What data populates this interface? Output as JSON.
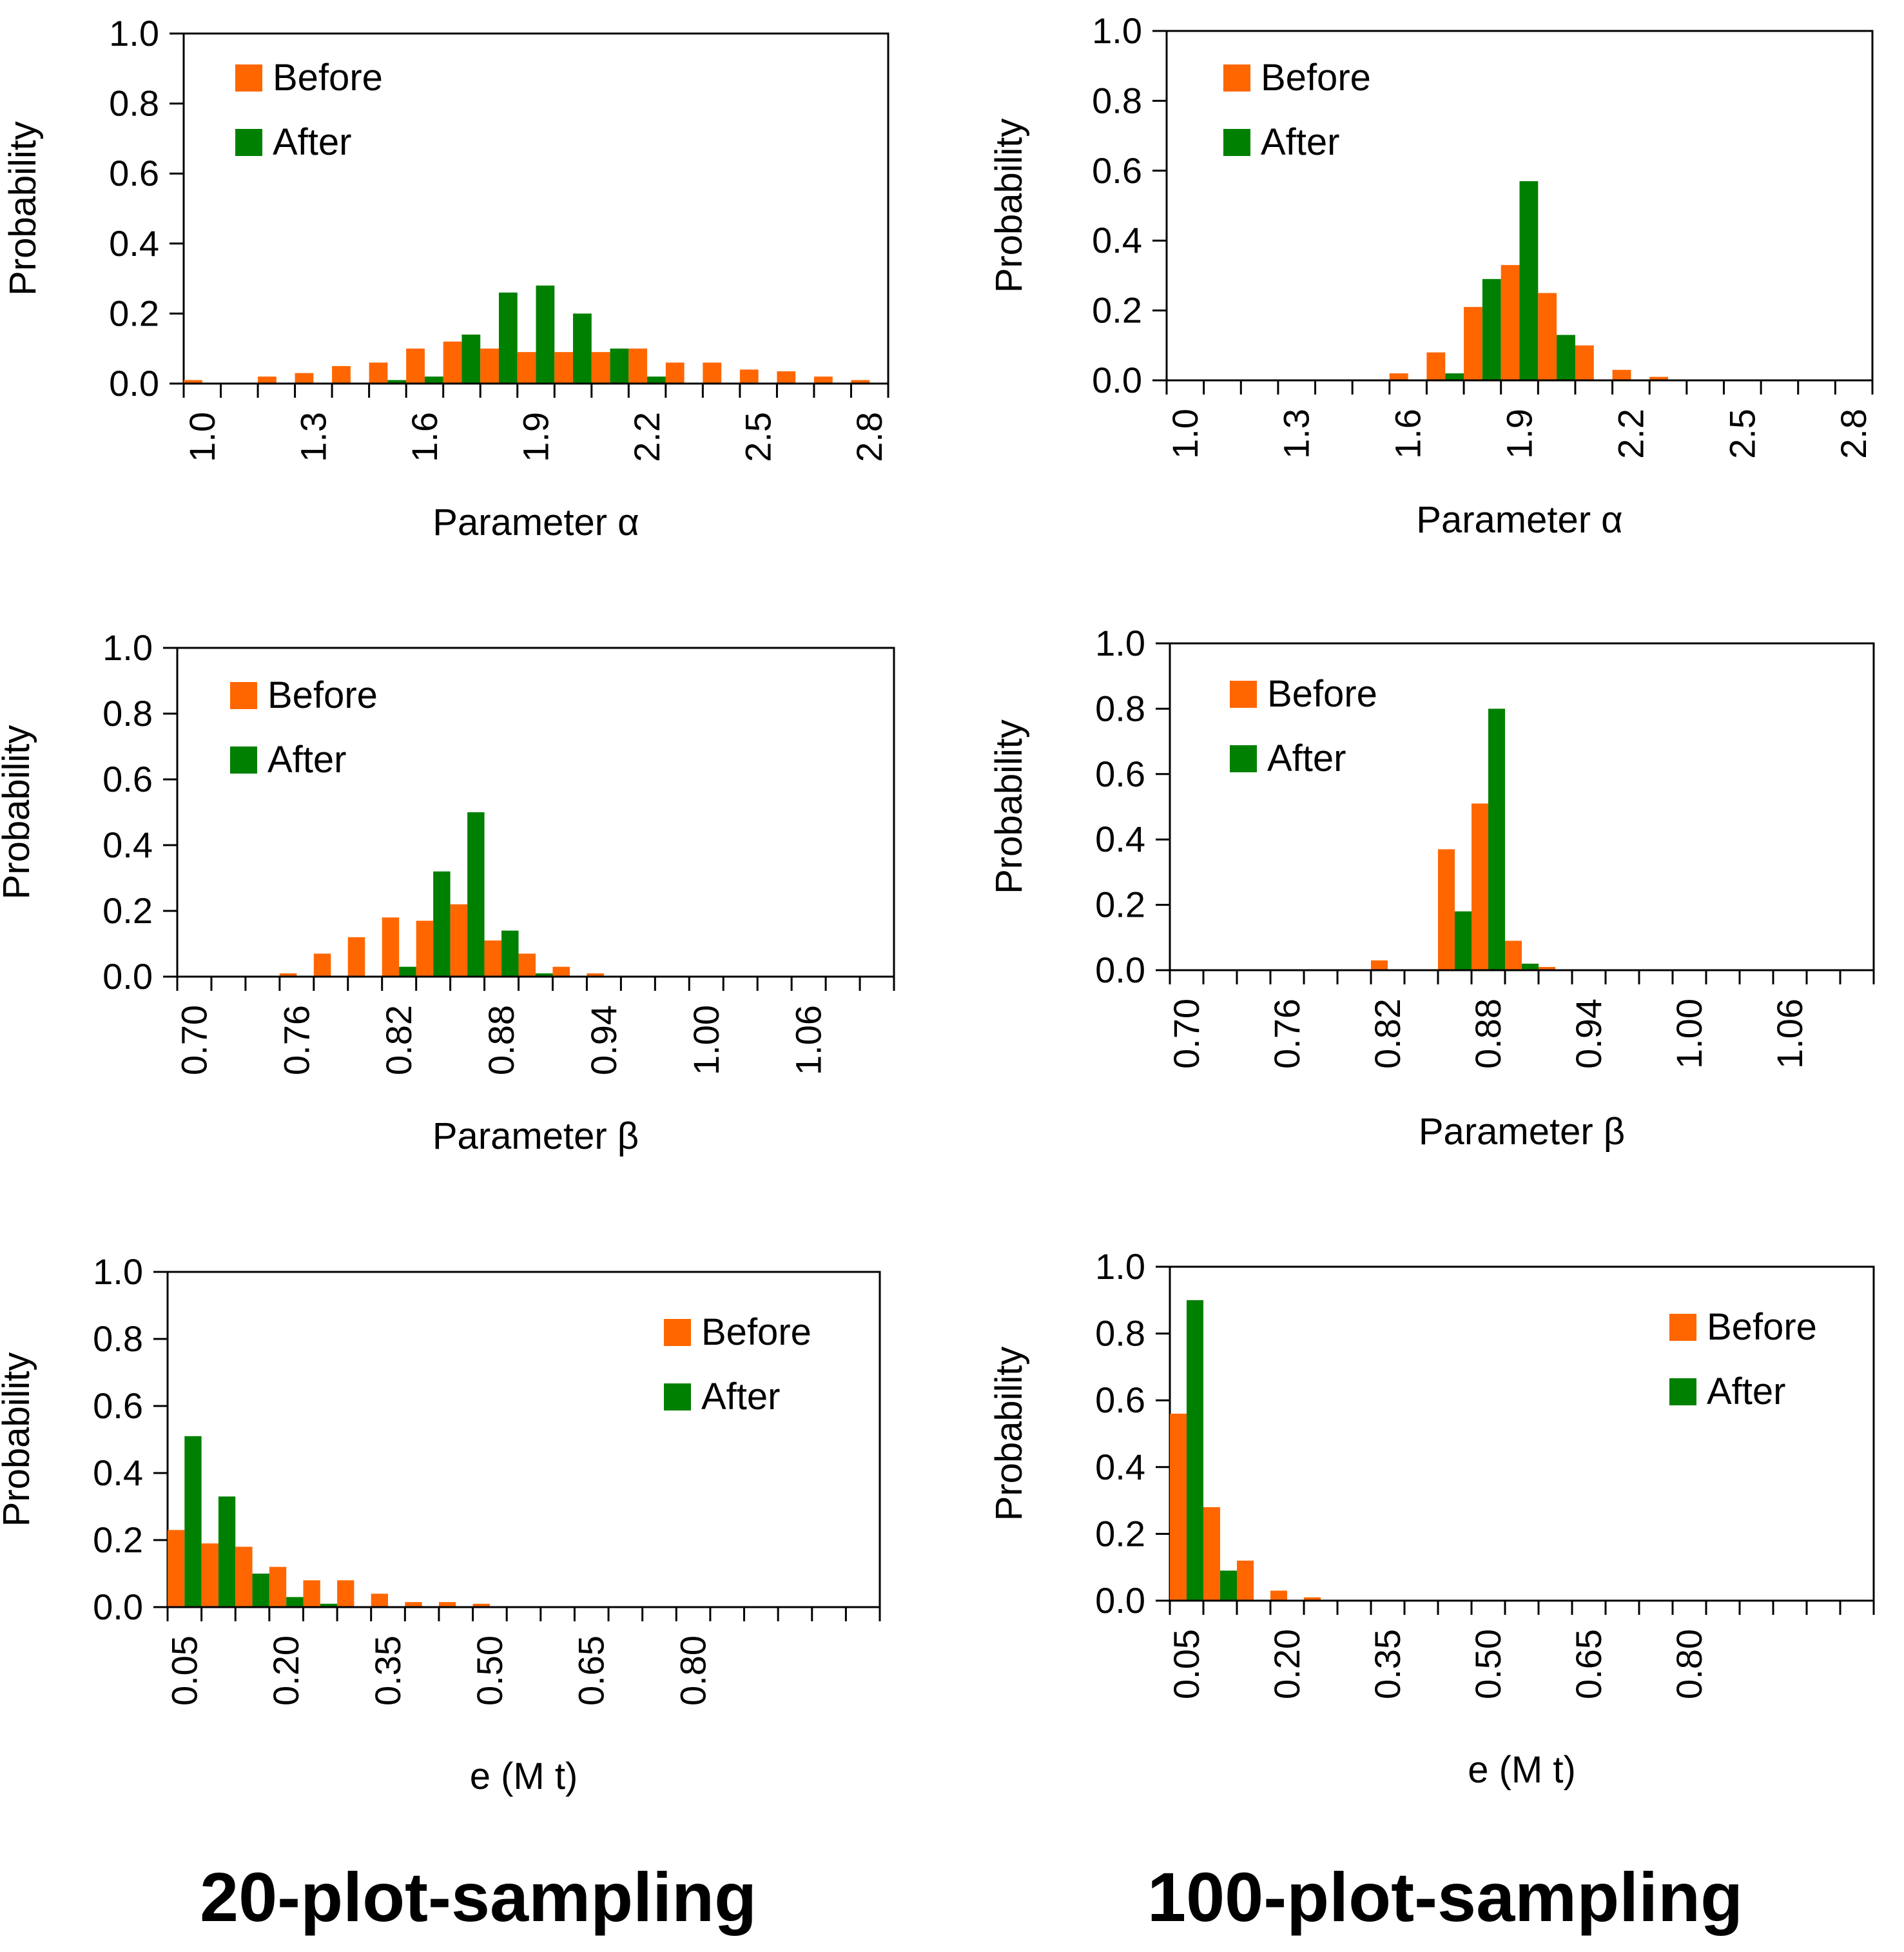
{
  "colors": {
    "before": "#ff6600",
    "after": "#008000",
    "axis": "#000000"
  },
  "footer": {
    "left": "20-plot-sampling",
    "right": "100-plot-sampling"
  },
  "chart_data": [
    {
      "type": "bar",
      "title": "",
      "xlabel": "Parameter α",
      "ylabel": "Probability",
      "ylim": [
        0,
        1.0
      ],
      "yticks": [
        "0.0",
        "0.2",
        "0.4",
        "0.6",
        "0.8",
        "1.0"
      ],
      "bins": 19,
      "tick_labels": [
        "1.0",
        "1.3",
        "1.6",
        "1.9",
        "2.2",
        "2.5",
        "2.8"
      ],
      "legend": {
        "labels": [
          "Before",
          "After"
        ],
        "position": "top-left"
      },
      "series": [
        {
          "name": "Before",
          "values": [
            0.01,
            0,
            0.02,
            0.03,
            0.05,
            0.06,
            0.1,
            0.12,
            0.1,
            0.09,
            0.09,
            0.09,
            0.1,
            0.06,
            0.06,
            0.04,
            0.035,
            0.02,
            0.01
          ]
        },
        {
          "name": "After",
          "values": [
            0,
            0,
            0,
            0,
            0,
            0.01,
            0.02,
            0.14,
            0.26,
            0.28,
            0.2,
            0.1,
            0.02,
            0,
            0,
            0,
            0,
            0,
            0
          ]
        }
      ]
    },
    {
      "type": "bar",
      "title": "",
      "xlabel": "Parameter α",
      "ylabel": "Probability",
      "ylim": [
        0,
        1.0
      ],
      "yticks": [
        "0.0",
        "0.2",
        "0.4",
        "0.6",
        "0.8",
        "1.0"
      ],
      "bins": 19,
      "tick_labels": [
        "1.0",
        "1.3",
        "1.6",
        "1.9",
        "2.2",
        "2.5",
        "2.8"
      ],
      "legend": {
        "labels": [
          "Before",
          "After"
        ],
        "position": "top-left"
      },
      "series": [
        {
          "name": "Before",
          "values": [
            0,
            0,
            0,
            0,
            0,
            0,
            0.02,
            0.08,
            0.21,
            0.33,
            0.25,
            0.1,
            0.03,
            0.01,
            0,
            0,
            0,
            0,
            0
          ]
        },
        {
          "name": "After",
          "values": [
            0,
            0,
            0,
            0,
            0,
            0,
            0,
            0.02,
            0.29,
            0.57,
            0.13,
            0,
            0,
            0,
            0,
            0,
            0,
            0,
            0
          ]
        }
      ]
    },
    {
      "type": "bar",
      "title": "",
      "xlabel": "Parameter β",
      "ylabel": "Probability",
      "ylim": [
        0,
        1.0
      ],
      "yticks": [
        "0.0",
        "0.2",
        "0.4",
        "0.6",
        "0.8",
        "1.0"
      ],
      "bins": 21,
      "tick_labels": [
        "0.70",
        "0.76",
        "0.82",
        "0.88",
        "0.94",
        "1.00",
        "1.06"
      ],
      "legend": {
        "labels": [
          "Before",
          "After"
        ],
        "position": "top-left"
      },
      "series": [
        {
          "name": "Before",
          "values": [
            0,
            0,
            0,
            0.01,
            0.07,
            0.12,
            0.18,
            0.17,
            0.22,
            0.11,
            0.07,
            0.03,
            0.01,
            0,
            0,
            0,
            0,
            0,
            0,
            0,
            0
          ]
        },
        {
          "name": "After",
          "values": [
            0,
            0,
            0,
            0,
            0,
            0,
            0.03,
            0.32,
            0.5,
            0.14,
            0.01,
            0,
            0,
            0,
            0,
            0,
            0,
            0,
            0,
            0,
            0
          ]
        }
      ]
    },
    {
      "type": "bar",
      "title": "",
      "xlabel": "Parameter β",
      "ylabel": "Probability",
      "ylim": [
        0,
        1.0
      ],
      "yticks": [
        "0.0",
        "0.2",
        "0.4",
        "0.6",
        "0.8",
        "1.0"
      ],
      "bins": 21,
      "tick_labels": [
        "0.70",
        "0.76",
        "0.82",
        "0.88",
        "0.94",
        "1.00",
        "1.06"
      ],
      "legend": {
        "labels": [
          "Before",
          "After"
        ],
        "position": "top-left"
      },
      "series": [
        {
          "name": "Before",
          "values": [
            0,
            0,
            0,
            0,
            0,
            0,
            0.03,
            0,
            0.37,
            0.51,
            0.09,
            0.01,
            0,
            0,
            0,
            0,
            0,
            0,
            0,
            0,
            0
          ]
        },
        {
          "name": "After",
          "values": [
            0,
            0,
            0,
            0,
            0,
            0,
            0,
            0,
            0.18,
            0.8,
            0.02,
            0,
            0,
            0,
            0,
            0,
            0,
            0,
            0,
            0,
            0
          ]
        }
      ]
    },
    {
      "type": "bar",
      "title": "",
      "xlabel": "e (M t)",
      "ylabel": "Probability",
      "ylim": [
        0,
        1.0
      ],
      "yticks": [
        "0.0",
        "0.2",
        "0.4",
        "0.6",
        "0.8",
        "1.0"
      ],
      "bins": 21,
      "tick_labels": [
        "0.05",
        "0.20",
        "0.35",
        "0.50",
        "0.65",
        "0.80"
      ],
      "legend": {
        "labels": [
          "Before",
          "After"
        ],
        "position": "top-right"
      },
      "series": [
        {
          "name": "Before",
          "values": [
            0.23,
            0.19,
            0.18,
            0.12,
            0.08,
            0.08,
            0.04,
            0.015,
            0.015,
            0.01,
            0,
            0,
            0,
            0,
            0,
            0,
            0,
            0,
            0,
            0,
            0
          ]
        },
        {
          "name": "After",
          "values": [
            0.51,
            0.33,
            0.1,
            0.03,
            0.01,
            0,
            0,
            0,
            0,
            0,
            0,
            0,
            0,
            0,
            0,
            0,
            0,
            0,
            0,
            0,
            0
          ]
        }
      ]
    },
    {
      "type": "bar",
      "title": "",
      "xlabel": "e (M t)",
      "ylabel": "Probability",
      "ylim": [
        0,
        1.0
      ],
      "yticks": [
        "0.0",
        "0.2",
        "0.4",
        "0.6",
        "0.8",
        "1.0"
      ],
      "bins": 21,
      "tick_labels": [
        "0.05",
        "0.20",
        "0.35",
        "0.50",
        "0.65",
        "0.80"
      ],
      "legend": {
        "labels": [
          "Before",
          "After"
        ],
        "position": "top-right"
      },
      "series": [
        {
          "name": "Before",
          "values": [
            0.56,
            0.28,
            0.12,
            0.03,
            0.01,
            0,
            0,
            0,
            0,
            0,
            0,
            0,
            0,
            0,
            0,
            0,
            0,
            0,
            0,
            0,
            0
          ]
        },
        {
          "name": "After",
          "values": [
            0.9,
            0.09,
            0,
            0,
            0,
            0,
            0,
            0,
            0,
            0,
            0,
            0,
            0,
            0,
            0,
            0,
            0,
            0,
            0,
            0,
            0
          ]
        }
      ]
    }
  ]
}
